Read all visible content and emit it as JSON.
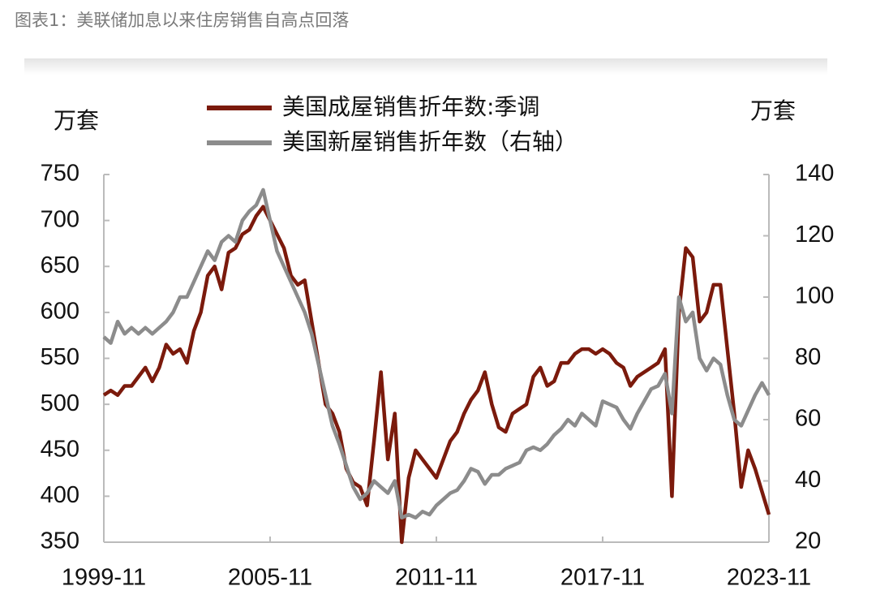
{
  "chart_data": {
    "type": "line",
    "title": "图表1：美联储加息以来住房销售自高点回落",
    "ylabel": "万套",
    "y2label": "万套",
    "x": [
      "1999-11",
      "2000-02",
      "2000-05",
      "2000-08",
      "2000-11",
      "2001-02",
      "2001-05",
      "2001-08",
      "2001-11",
      "2002-02",
      "2002-05",
      "2002-08",
      "2002-11",
      "2003-02",
      "2003-05",
      "2003-08",
      "2003-11",
      "2004-02",
      "2004-05",
      "2004-08",
      "2004-11",
      "2005-02",
      "2005-05",
      "2005-08",
      "2005-11",
      "2006-02",
      "2006-05",
      "2006-08",
      "2006-11",
      "2007-02",
      "2007-05",
      "2007-08",
      "2007-11",
      "2008-02",
      "2008-05",
      "2008-08",
      "2008-11",
      "2009-02",
      "2009-05",
      "2009-08",
      "2009-11",
      "2010-02",
      "2010-05",
      "2010-08",
      "2010-11",
      "2011-02",
      "2011-05",
      "2011-08",
      "2011-11",
      "2012-02",
      "2012-05",
      "2012-08",
      "2012-11",
      "2013-02",
      "2013-05",
      "2013-08",
      "2013-11",
      "2014-02",
      "2014-05",
      "2014-08",
      "2014-11",
      "2015-02",
      "2015-05",
      "2015-08",
      "2015-11",
      "2016-02",
      "2016-05",
      "2016-08",
      "2016-11",
      "2017-02",
      "2017-05",
      "2017-08",
      "2017-11",
      "2018-02",
      "2018-05",
      "2018-08",
      "2018-11",
      "2019-02",
      "2019-05",
      "2019-08",
      "2019-11",
      "2020-02",
      "2020-05",
      "2020-08",
      "2020-11",
      "2021-02",
      "2021-05",
      "2021-08",
      "2021-11",
      "2022-02",
      "2022-05",
      "2022-08",
      "2022-11",
      "2023-02",
      "2023-05",
      "2023-08",
      "2023-11"
    ],
    "series": [
      {
        "name": "美国成屋销售折年数:季调",
        "color": "#7b1a0c",
        "axis": "y",
        "values": [
          510,
          515,
          510,
          520,
          520,
          530,
          540,
          525,
          540,
          565,
          555,
          560,
          545,
          580,
          600,
          640,
          650,
          625,
          665,
          670,
          685,
          690,
          705,
          715,
          700,
          685,
          670,
          640,
          630,
          635,
          590,
          545,
          500,
          490,
          470,
          430,
          415,
          410,
          390,
          460,
          535,
          440,
          490,
          350,
          420,
          450,
          440,
          430,
          420,
          440,
          460,
          470,
          490,
          505,
          515,
          535,
          500,
          475,
          470,
          490,
          495,
          500,
          530,
          540,
          520,
          525,
          545,
          545,
          555,
          560,
          560,
          555,
          560,
          555,
          545,
          540,
          520,
          530,
          535,
          540,
          545,
          560,
          400,
          600,
          670,
          660,
          590,
          600,
          630,
          630,
          560,
          490,
          410,
          450,
          430,
          405,
          380
        ]
      },
      {
        "name": "美国新屋销售折年数（右轴）",
        "color": "#8c8c8c",
        "axis": "y2",
        "values": [
          87,
          85,
          92,
          88,
          90,
          88,
          90,
          88,
          90,
          92,
          95,
          100,
          100,
          105,
          110,
          115,
          112,
          118,
          120,
          118,
          125,
          128,
          130,
          135,
          125,
          115,
          110,
          105,
          100,
          95,
          88,
          78,
          68,
          58,
          52,
          45,
          38,
          34,
          36,
          40,
          38,
          36,
          40,
          28,
          29,
          28,
          30,
          29,
          32,
          34,
          36,
          37,
          40,
          44,
          43,
          39,
          42,
          42,
          44,
          45,
          46,
          50,
          51,
          50,
          52,
          55,
          57,
          60,
          58,
          62,
          60,
          58,
          66,
          65,
          64,
          60,
          57,
          62,
          66,
          70,
          71,
          75,
          62,
          100,
          92,
          95,
          80,
          76,
          80,
          78,
          68,
          60,
          58,
          63,
          68,
          72,
          68
        ]
      }
    ],
    "xticks": [
      "1999-11",
      "2005-11",
      "2011-11",
      "2017-11",
      "2023-11"
    ],
    "ylim": [
      350,
      750
    ],
    "yticks": [
      350,
      400,
      450,
      500,
      550,
      600,
      650,
      700,
      750
    ],
    "y2lim": [
      20,
      140
    ],
    "y2ticks": [
      20,
      40,
      60,
      80,
      100,
      120,
      140
    ],
    "legend": "top"
  }
}
